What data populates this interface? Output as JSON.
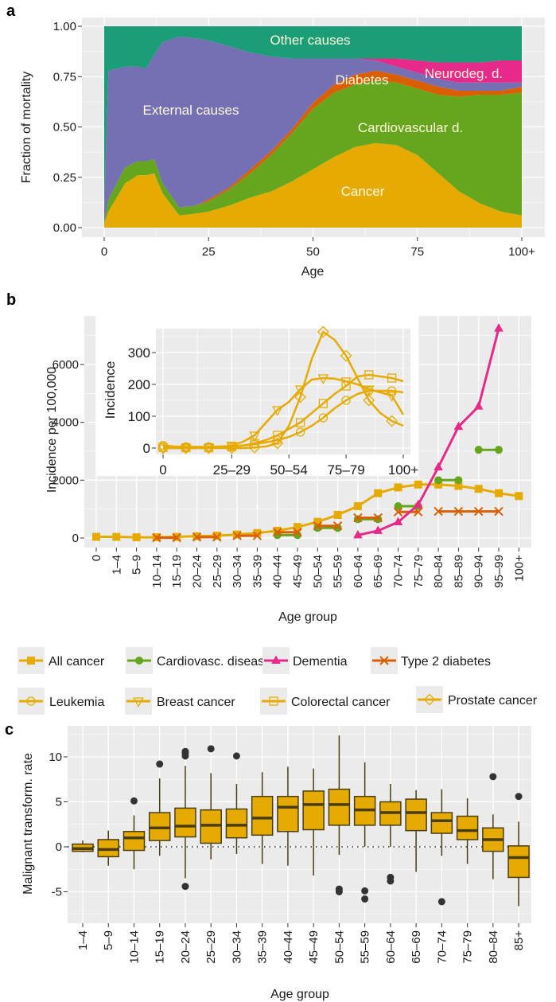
{
  "panel_labels": {
    "a": "a",
    "b": "b",
    "c": "c"
  },
  "chart_data": [
    {
      "type": "area",
      "stacked": true,
      "xlabel": "Age",
      "ylabel": "Fraction of mortality",
      "xlim": [
        0,
        100
      ],
      "ylim": [
        0,
        1
      ],
      "xticks": [
        "0",
        "25",
        "50",
        "75",
        "100+"
      ],
      "yticks": [
        "0.00",
        "0.25",
        "0.50",
        "0.75",
        "1.00"
      ],
      "grid": true,
      "age": [
        0,
        1,
        5,
        8,
        10,
        12,
        14,
        18,
        22,
        25,
        30,
        35,
        40,
        45,
        50,
        55,
        60,
        65,
        70,
        75,
        80,
        85,
        90,
        95,
        100
      ],
      "series": [
        {
          "name": "Cancer",
          "color": "#E6AB02",
          "values": [
            0.02,
            0.08,
            0.22,
            0.26,
            0.26,
            0.27,
            0.17,
            0.06,
            0.07,
            0.08,
            0.11,
            0.15,
            0.18,
            0.23,
            0.29,
            0.35,
            0.4,
            0.42,
            0.41,
            0.36,
            0.27,
            0.18,
            0.12,
            0.08,
            0.06
          ]
        },
        {
          "name": "Cardiovascular d.",
          "color": "#66A61E",
          "values": [
            0.01,
            0.06,
            0.08,
            0.07,
            0.07,
            0.07,
            0.05,
            0.04,
            0.04,
            0.05,
            0.08,
            0.12,
            0.18,
            0.24,
            0.3,
            0.32,
            0.31,
            0.31,
            0.31,
            0.33,
            0.39,
            0.47,
            0.54,
            0.58,
            0.61
          ]
        },
        {
          "name": "Diabetes",
          "color": "#D95F02",
          "values": [
            0,
            0,
            0,
            0,
            0,
            0,
            0,
            0,
            0,
            0.01,
            0.01,
            0.02,
            0.02,
            0.02,
            0.03,
            0.04,
            0.05,
            0.05,
            0.04,
            0.04,
            0.04,
            0.03,
            0.02,
            0.02,
            0.03
          ]
        },
        {
          "name": "External causes",
          "color": "#7570B3",
          "values": [
            0.07,
            0.64,
            0.5,
            0.47,
            0.46,
            0.52,
            0.7,
            0.85,
            0.83,
            0.79,
            0.7,
            0.58,
            0.47,
            0.35,
            0.22,
            0.13,
            0.08,
            0.05,
            0.04,
            0.04,
            0.04,
            0.04,
            0.04,
            0.04,
            0.02
          ]
        },
        {
          "name": "Neurodeg. d.",
          "color": "#E7298A",
          "values": [
            0,
            0,
            0,
            0,
            0,
            0,
            0,
            0,
            0,
            0,
            0,
            0,
            0,
            0,
            0,
            0,
            0,
            0.01,
            0.04,
            0.06,
            0.08,
            0.1,
            0.1,
            0.11,
            0.11
          ]
        },
        {
          "name": "Other causes",
          "color": "#1B9E77",
          "values": [
            0.9,
            0.22,
            0.2,
            0.2,
            0.21,
            0.14,
            0.08,
            0.05,
            0.06,
            0.07,
            0.1,
            0.13,
            0.15,
            0.16,
            0.16,
            0.16,
            0.16,
            0.16,
            0.16,
            0.17,
            0.18,
            0.18,
            0.18,
            0.17,
            0.17
          ]
        }
      ]
    },
    {
      "type": "line",
      "xlabel": "Age group",
      "ylabel": "Incidence per 100,000",
      "ylim": [
        0,
        7500
      ],
      "yticks": [
        "0",
        "2000",
        "4000",
        "6000"
      ],
      "grid": true,
      "legend_position": "bottom",
      "categories": [
        "0",
        "1–4",
        "5–9",
        "10–14",
        "15–19",
        "20–24",
        "25–29",
        "30–34",
        "35–39",
        "40–44",
        "45–49",
        "50–54",
        "55–59",
        "60–64",
        "65–69",
        "70–74",
        "75–79",
        "80–84",
        "85–89",
        "90–94",
        "95–99",
        "100+"
      ],
      "series": [
        {
          "name": "All cancer",
          "color": "#E6AB02",
          "marker": "square",
          "x": [
            "0",
            "1–4",
            "5–9",
            "10–14",
            "15–19",
            "20–24",
            "25–29",
            "30–34",
            "35–39",
            "40–44",
            "45–49",
            "50–54",
            "55–59",
            "60–64",
            "65–69",
            "70–74",
            "75–79",
            "80–84",
            "85–89",
            "90–94",
            "95–99",
            "100+"
          ],
          "y": [
            40,
            40,
            25,
            25,
            40,
            60,
            80,
            120,
            170,
            250,
            380,
            560,
            800,
            1100,
            1550,
            1750,
            1850,
            1850,
            1800,
            1700,
            1550,
            1450
          ]
        },
        {
          "name": "Cardiovasc. disease",
          "color": "#66A61E",
          "marker": "circle",
          "segments": [
            {
              "x": [
                "40–44",
                "45–49"
              ],
              "y": [
                100,
                100
              ]
            },
            {
              "x": [
                "50–54",
                "55–59"
              ],
              "y": [
                350,
                350
              ]
            },
            {
              "x": [
                "60–64",
                "65–69"
              ],
              "y": [
                650,
                650
              ]
            },
            {
              "x": [
                "70–74",
                "75–79"
              ],
              "y": [
                1100,
                1100
              ]
            },
            {
              "x": [
                "80–84",
                "85–89"
              ],
              "y": [
                2000,
                2000
              ]
            },
            {
              "x": [
                "90–94",
                "95–99"
              ],
              "y": [
                3050,
                3050
              ]
            }
          ]
        },
        {
          "name": "Dementia",
          "color": "#E7298A",
          "marker": "triangle",
          "x": [
            "60–64",
            "65–69",
            "70–74",
            "75–79",
            "80–84",
            "85–89",
            "90–94",
            "95–99"
          ],
          "y": [
            100,
            250,
            550,
            1150,
            2450,
            3850,
            4550,
            7250
          ]
        },
        {
          "name": "Type 2 diabetes",
          "color": "#D95F02",
          "marker": "x",
          "segments": [
            {
              "x": [
                "10–14",
                "15–19"
              ],
              "y": [
                10,
                10
              ]
            },
            {
              "x": [
                "20–24",
                "25–29"
              ],
              "y": [
                30,
                30
              ]
            },
            {
              "x": [
                "30–34",
                "35–39"
              ],
              "y": [
                80,
                80
              ]
            },
            {
              "x": [
                "40–44",
                "45–49"
              ],
              "y": [
                200,
                200
              ]
            },
            {
              "x": [
                "50–54",
                "55–59"
              ],
              "y": [
                420,
                420
              ]
            },
            {
              "x": [
                "60–64",
                "65–69"
              ],
              "y": [
                700,
                700
              ]
            },
            {
              "x": [
                "70–74",
                "75–79"
              ],
              "y": [
                900,
                900
              ]
            },
            {
              "x": [
                "80–84",
                "85–89",
                "90–94",
                "95–99"
              ],
              "y": [
                920,
                920,
                920,
                920
              ]
            }
          ]
        }
      ]
    },
    {
      "type": "line",
      "inset": true,
      "ylabel": "Incidence",
      "ylim": [
        0,
        370
      ],
      "yticks": [
        "0",
        "100",
        "200",
        "300"
      ],
      "xticks": [
        "0",
        "25–29",
        "50–54",
        "75–79",
        "100+"
      ],
      "grid": true,
      "series": [
        {
          "name": "Leukemia",
          "color": "#E6AB02",
          "marker": "open-circle",
          "values": [
            8,
            5,
            4,
            4,
            4,
            5,
            6,
            8,
            12,
            18,
            25,
            35,
            50,
            70,
            95,
            125,
            150,
            170,
            180,
            180,
            180,
            175
          ]
        },
        {
          "name": "Breast cancer",
          "color": "#E6AB02",
          "marker": "open-triangle-down",
          "values": [
            0,
            0,
            0,
            0,
            1,
            3,
            8,
            20,
            40,
            80,
            120,
            145,
            185,
            215,
            220,
            218,
            210,
            200,
            185,
            175,
            165,
            105
          ]
        },
        {
          "name": "Colorectal cancer",
          "color": "#E6AB02",
          "marker": "open-square",
          "values": [
            2,
            1,
            1,
            1,
            1,
            2,
            4,
            8,
            15,
            25,
            40,
            60,
            80,
            110,
            140,
            170,
            195,
            225,
            230,
            225,
            220,
            210
          ]
        },
        {
          "name": "Prostate cancer",
          "color": "#E6AB02",
          "marker": "open-diamond",
          "values": [
            0,
            0,
            0,
            0,
            0,
            0,
            0,
            0,
            2,
            5,
            15,
            70,
            160,
            280,
            365,
            340,
            290,
            220,
            150,
            110,
            85,
            70
          ]
        }
      ]
    },
    {
      "type": "boxplot",
      "xlabel": "Age group",
      "ylabel": "Malignant transform. rate",
      "ylim": [
        -7.5,
        12.8
      ],
      "yticks": [
        "-5",
        "0",
        "5",
        "10"
      ],
      "reference_line": 0,
      "grid": true,
      "box_color": "#E6AB02",
      "categories": [
        "1–4",
        "5–9",
        "10–14",
        "15–19",
        "20–24",
        "25–29",
        "30–34",
        "35–39",
        "40–44",
        "45–49",
        "50–54",
        "55–59",
        "60–64",
        "65–69",
        "70–74",
        "75–79",
        "80–84",
        "85+"
      ],
      "boxes": [
        {
          "min": -0.6,
          "q1": -0.5,
          "median": -0.2,
          "q3": 0.3,
          "max": 0.7,
          "outliers": []
        },
        {
          "min": -2.1,
          "q1": -1.1,
          "median": -0.3,
          "q3": 0.8,
          "max": 1.8,
          "outliers": []
        },
        {
          "min": -2.5,
          "q1": -0.4,
          "median": 1.0,
          "q3": 1.7,
          "max": 3.5,
          "outliers": [
            5.1
          ]
        },
        {
          "min": -1.0,
          "q1": 0.7,
          "median": 2.1,
          "q3": 3.8,
          "max": 7.6,
          "outliers": [
            9.2
          ]
        },
        {
          "min": -3.5,
          "q1": 1.1,
          "median": 2.3,
          "q3": 4.3,
          "max": 9.0,
          "outliers": [
            10.1,
            10.4,
            10.6,
            -4.4
          ]
        },
        {
          "min": -1.4,
          "q1": 0.4,
          "median": 2.4,
          "q3": 4.1,
          "max": 8.2,
          "outliers": [
            10.9
          ]
        },
        {
          "min": -0.8,
          "q1": 1.0,
          "median": 2.4,
          "q3": 4.2,
          "max": 7.0,
          "outliers": [
            10.1
          ]
        },
        {
          "min": -1.9,
          "q1": 1.3,
          "median": 3.2,
          "q3": 5.6,
          "max": 8.3,
          "outliers": []
        },
        {
          "min": -2.1,
          "q1": 1.7,
          "median": 4.4,
          "q3": 5.6,
          "max": 8.9,
          "outliers": []
        },
        {
          "min": -3.2,
          "q1": 1.9,
          "median": 4.7,
          "q3": 6.2,
          "max": 8.7,
          "outliers": []
        },
        {
          "min": -0.9,
          "q1": 2.4,
          "median": 4.7,
          "q3": 6.4,
          "max": 12.4,
          "outliers": [
            -4.7,
            -5.0
          ]
        },
        {
          "min": 0.0,
          "q1": 2.4,
          "median": 4.1,
          "q3": 5.6,
          "max": 9.4,
          "outliers": [
            -4.9,
            -5.8
          ]
        },
        {
          "min": 0.0,
          "q1": 2.4,
          "median": 3.8,
          "q3": 5.0,
          "max": 7.0,
          "outliers": [
            -3.4,
            -3.8
          ]
        },
        {
          "min": -2.8,
          "q1": 1.8,
          "median": 3.8,
          "q3": 5.3,
          "max": 6.3,
          "outliers": []
        },
        {
          "min": -1.0,
          "q1": 1.5,
          "median": 2.9,
          "q3": 3.8,
          "max": 6.4,
          "outliers": [
            -6.1
          ]
        },
        {
          "min": -1.9,
          "q1": 0.8,
          "median": 1.8,
          "q3": 3.4,
          "max": 5.4,
          "outliers": []
        },
        {
          "min": -3.6,
          "q1": -0.5,
          "median": 0.8,
          "q3": 2.1,
          "max": 3.6,
          "outliers": [
            7.8
          ]
        },
        {
          "min": -6.6,
          "q1": -3.4,
          "median": -1.2,
          "q3": 0.1,
          "max": 2.8,
          "outliers": [
            5.6
          ]
        }
      ]
    }
  ]
}
